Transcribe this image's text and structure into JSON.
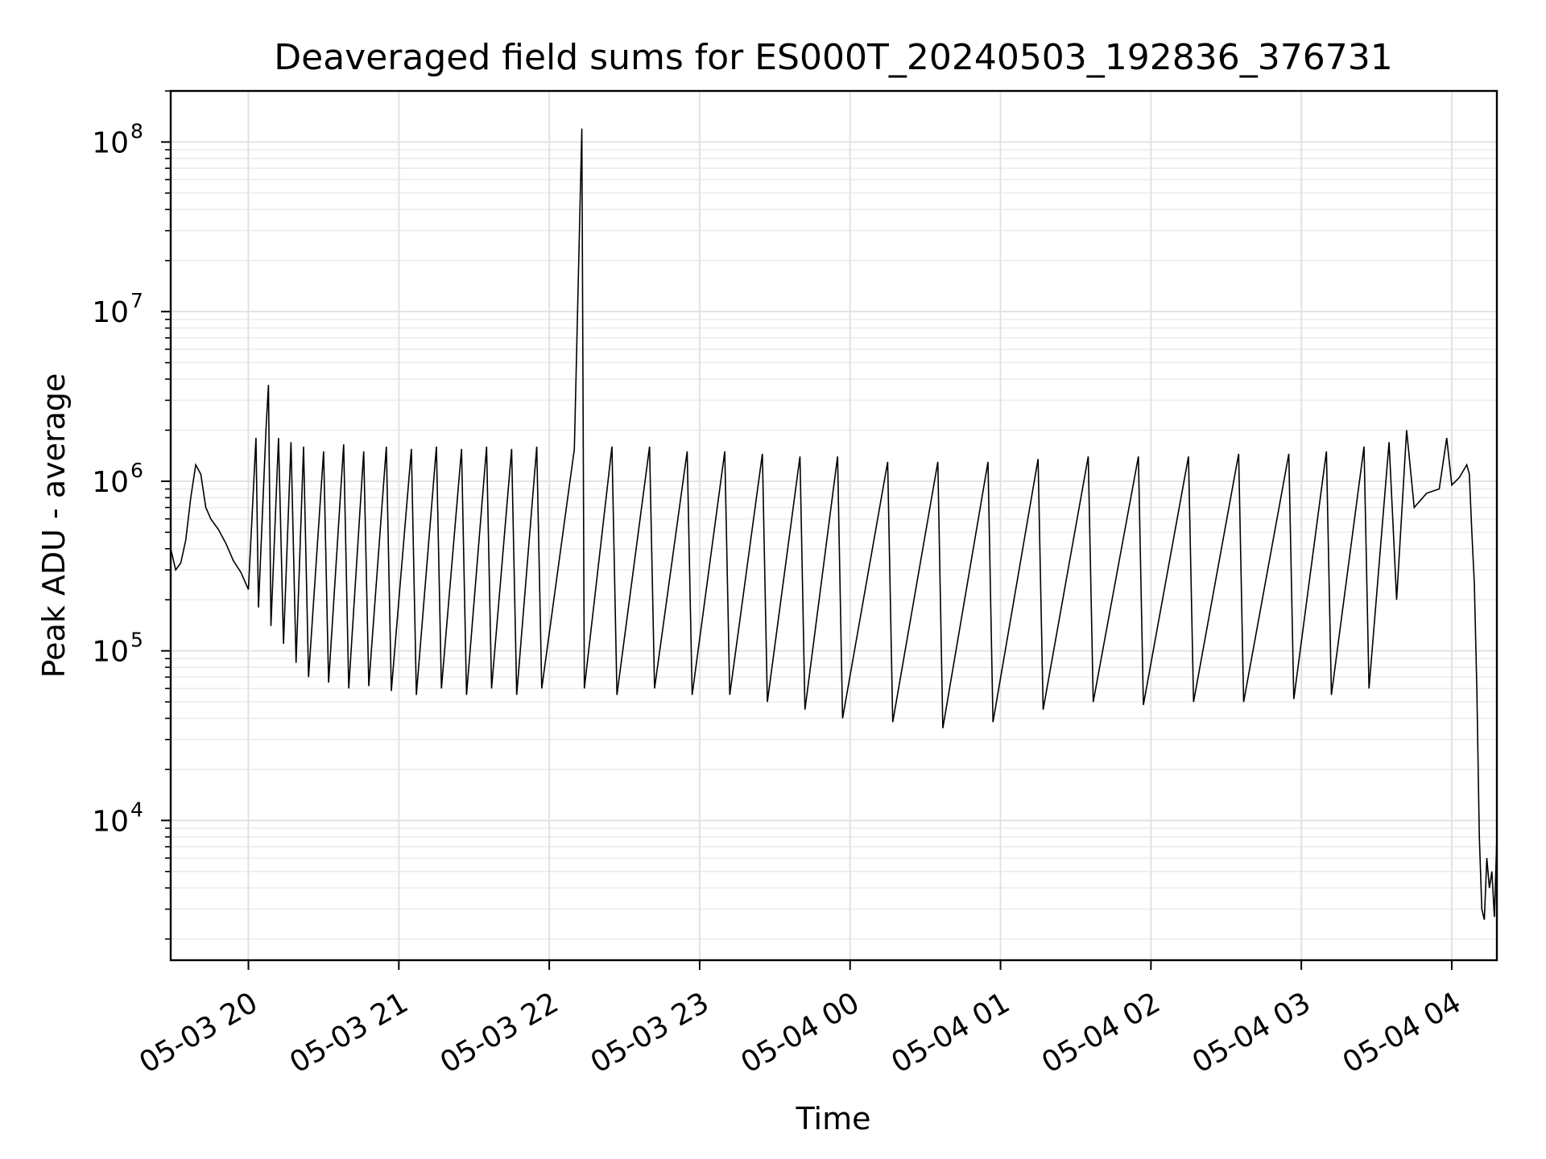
{
  "chart_data": {
    "type": "line",
    "title": "Deaveraged field sums for ES000T_20240503_192836_376731",
    "xlabel": "Time",
    "ylabel": "Peak ADU - average",
    "y_scale": "log",
    "ylim": [
      1500,
      200000000
    ],
    "xlim": [
      "05-03 19:29",
      "05-04 04:18"
    ],
    "grid": true,
    "x_tick_labels": [
      "05-03 20",
      "05-03 21",
      "05-03 22",
      "05-03 23",
      "05-04 00",
      "05-04 01",
      "05-04 02",
      "05-04 03",
      "05-04 04"
    ],
    "y_ticks": [
      {
        "base": "10",
        "exp": "4",
        "value": 10000
      },
      {
        "base": "10",
        "exp": "5",
        "value": 100000
      },
      {
        "base": "10",
        "exp": "6",
        "value": 1000000
      },
      {
        "base": "10",
        "exp": "7",
        "value": 10000000
      },
      {
        "base": "10",
        "exp": "8",
        "value": 100000000
      }
    ],
    "series": [
      {
        "color": "#000000",
        "points": [
          [
            "05-03 19:29",
            400000
          ],
          [
            "05-03 19:31",
            300000
          ],
          [
            "05-03 19:33",
            330000
          ],
          [
            "05-03 19:35",
            450000
          ],
          [
            "05-03 19:37",
            800000
          ],
          [
            "05-03 19:39",
            1250000
          ],
          [
            "05-03 19:41",
            1100000
          ],
          [
            "05-03 19:43",
            700000
          ],
          [
            "05-03 19:45",
            600000
          ],
          [
            "05-03 19:48",
            520000
          ],
          [
            "05-03 19:51",
            430000
          ],
          [
            "05-03 19:54",
            340000
          ],
          [
            "05-03 19:57",
            290000
          ],
          [
            "05-03 20:00",
            230000
          ],
          [
            "05-03 20:03",
            1800000
          ],
          [
            "05-03 20:04",
            180000
          ],
          [
            "05-03 20:07",
            2000000
          ],
          [
            "05-03 20:08",
            3700000
          ],
          [
            "05-03 20:09",
            140000
          ],
          [
            "05-03 20:12",
            1800000
          ],
          [
            "05-03 20:14",
            110000
          ],
          [
            "05-03 20:17",
            1700000
          ],
          [
            "05-03 20:19",
            85000
          ],
          [
            "05-03 20:22",
            1600000
          ],
          [
            "05-03 20:24",
            70000
          ],
          [
            "05-03 20:30",
            1500000
          ],
          [
            "05-03 20:32",
            65000
          ],
          [
            "05-03 20:38",
            1650000
          ],
          [
            "05-03 20:40",
            60000
          ],
          [
            "05-03 20:46",
            1500000
          ],
          [
            "05-03 20:48",
            62000
          ],
          [
            "05-03 20:55",
            1600000
          ],
          [
            "05-03 20:57",
            58000
          ],
          [
            "05-03 21:05",
            1550000
          ],
          [
            "05-03 21:07",
            55000
          ],
          [
            "05-03 21:15",
            1600000
          ],
          [
            "05-03 21:17",
            60000
          ],
          [
            "05-03 21:25",
            1550000
          ],
          [
            "05-03 21:27",
            55000
          ],
          [
            "05-03 21:35",
            1600000
          ],
          [
            "05-03 21:37",
            60000
          ],
          [
            "05-03 21:45",
            1550000
          ],
          [
            "05-03 21:47",
            55000
          ],
          [
            "05-03 21:55",
            1600000
          ],
          [
            "05-03 21:57",
            60000
          ],
          [
            "05-03 22:10",
            1550000
          ],
          [
            "05-03 22:13",
            120000000
          ],
          [
            "05-03 22:14",
            60000
          ],
          [
            "05-03 22:25",
            1600000
          ],
          [
            "05-03 22:27",
            55000
          ],
          [
            "05-03 22:40",
            1600000
          ],
          [
            "05-03 22:42",
            60000
          ],
          [
            "05-03 22:55",
            1500000
          ],
          [
            "05-03 22:57",
            55000
          ],
          [
            "05-03 23:10",
            1500000
          ],
          [
            "05-03 23:12",
            55000
          ],
          [
            "05-03 23:25",
            1450000
          ],
          [
            "05-03 23:27",
            50000
          ],
          [
            "05-03 23:40",
            1400000
          ],
          [
            "05-03 23:42",
            45000
          ],
          [
            "05-03 23:55",
            1400000
          ],
          [
            "05-03 23:57",
            40000
          ],
          [
            "05-04 00:15",
            1300000
          ],
          [
            "05-04 00:17",
            38000
          ],
          [
            "05-04 00:35",
            1300000
          ],
          [
            "05-04 00:37",
            35000
          ],
          [
            "05-04 00:55",
            1300000
          ],
          [
            "05-04 00:57",
            38000
          ],
          [
            "05-04 01:15",
            1350000
          ],
          [
            "05-04 01:17",
            45000
          ],
          [
            "05-04 01:35",
            1400000
          ],
          [
            "05-04 01:37",
            50000
          ],
          [
            "05-04 01:55",
            1400000
          ],
          [
            "05-04 01:57",
            48000
          ],
          [
            "05-04 02:15",
            1400000
          ],
          [
            "05-04 02:17",
            50000
          ],
          [
            "05-04 02:35",
            1450000
          ],
          [
            "05-04 02:37",
            50000
          ],
          [
            "05-04 02:55",
            1450000
          ],
          [
            "05-04 02:57",
            52000
          ],
          [
            "05-04 03:10",
            1500000
          ],
          [
            "05-04 03:12",
            55000
          ],
          [
            "05-04 03:25",
            1600000
          ],
          [
            "05-04 03:27",
            60000
          ],
          [
            "05-04 03:35",
            1700000
          ],
          [
            "05-04 03:38",
            200000
          ],
          [
            "05-04 03:42",
            2000000
          ],
          [
            "05-04 03:45",
            700000
          ],
          [
            "05-04 03:50",
            850000
          ],
          [
            "05-04 03:55",
            900000
          ],
          [
            "05-04 03:58",
            1800000
          ],
          [
            "05-04 04:00",
            950000
          ],
          [
            "05-04 04:03",
            1050000
          ],
          [
            "05-04 04:06",
            1250000
          ],
          [
            "05-04 04:07",
            1100000
          ],
          [
            "05-04 04:08",
            500000
          ],
          [
            "05-04 04:09",
            250000
          ],
          [
            "05-04 04:10",
            60000
          ],
          [
            "05-04 04:11",
            8000
          ],
          [
            "05-04 04:12",
            3000
          ],
          [
            "05-04 04:13",
            2600
          ],
          [
            "05-04 04:14",
            6000
          ],
          [
            "05-04 04:15",
            4000
          ],
          [
            "05-04 04:16",
            5000
          ],
          [
            "05-04 04:17",
            2700
          ],
          [
            "05-04 04:18",
            8000
          ]
        ]
      }
    ]
  }
}
